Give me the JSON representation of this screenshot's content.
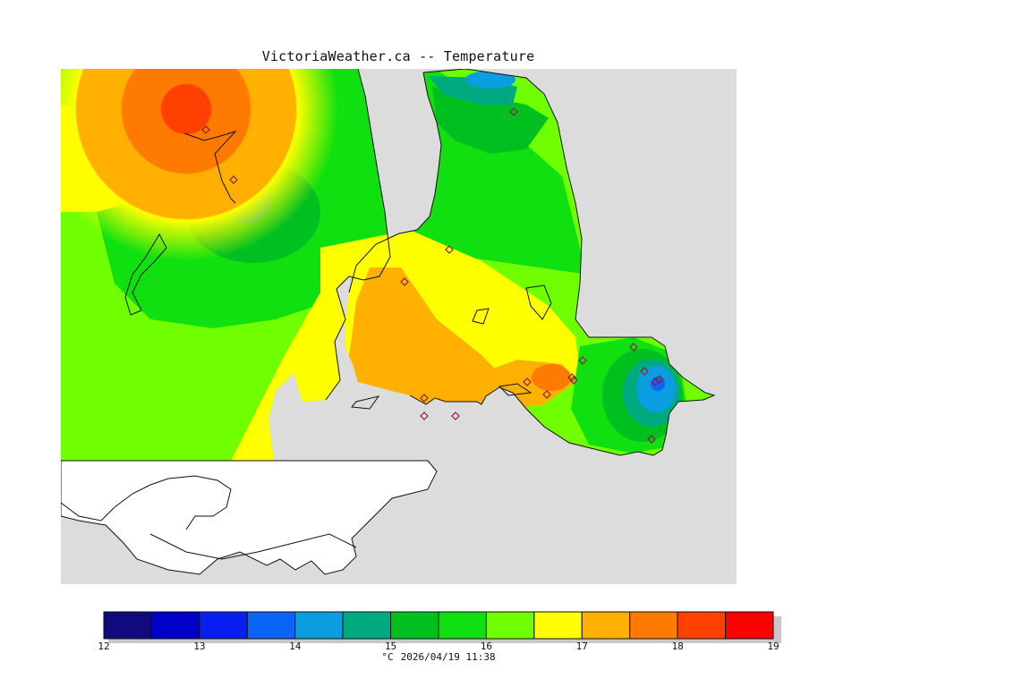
{
  "title": "VictoriaWeather.ca -- Temperature",
  "footer": {
    "unit": "°C",
    "timestamp": "2026/04/19 11:38"
  },
  "colorbar": {
    "min": 12,
    "max": 19,
    "step": 0.5,
    "tick_labels": [
      "12",
      "13",
      "14",
      "15",
      "16",
      "17",
      "18",
      "19"
    ],
    "colors": [
      "#100a7e",
      "#0000c8",
      "#0a1ef2",
      "#0a64f5",
      "#0a9ee0",
      "#00aa80",
      "#00c020",
      "#10e010",
      "#70ff00",
      "#ffff00",
      "#ffb000",
      "#ff7a00",
      "#ff4000",
      "#ff0000"
    ]
  },
  "map": {
    "background_land": "#ffffff",
    "no_data_color": "#dcdcdc",
    "station_marker": "diamond",
    "station_count": 22
  }
}
